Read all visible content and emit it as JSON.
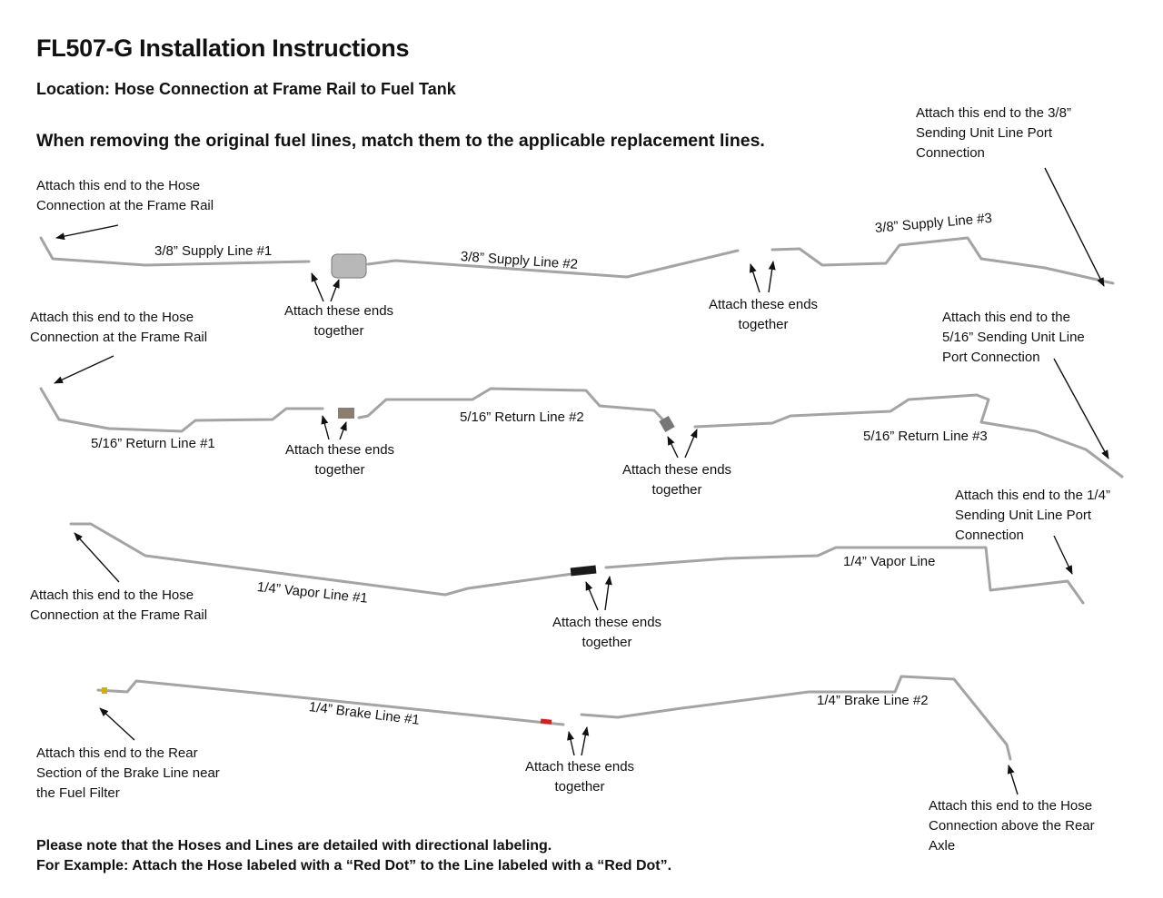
{
  "title": "FL507-G Installation Instructions",
  "location": "Location: Hose Connection at Frame Rail to Fuel Tank",
  "instruction": "When removing the original fuel lines, match them to the applicable replacement lines.",
  "supply": {
    "start_note": "Attach this end to the Hose\nConnection at the Frame Rail",
    "end_note": "Attach this end to the 3/8”\nSending Unit Line Port\nConnection",
    "line1": "3/8” Supply Line #1",
    "line2": "3/8” Supply Line #2",
    "line3": "3/8” Supply Line #3",
    "join1": "Attach these ends\ntogether",
    "join2": "Attach these ends\ntogether"
  },
  "return": {
    "start_note": "Attach this end to the Hose\nConnection at the Frame Rail",
    "end_note": "Attach this end to the\n5/16” Sending Unit Line\nPort Connection",
    "line1": "5/16” Return Line #1",
    "line2": "5/16” Return Line #2",
    "line3": "5/16” Return Line #3",
    "join1": "Attach these ends\ntogether",
    "join2": "Attach these ends\ntogether"
  },
  "vapor": {
    "start_note": "Attach this end to the Hose\nConnection at the Frame Rail",
    "end_note": "Attach this end to the 1/4”\nSending Unit Line Port\nConnection",
    "line1": "1/4” Vapor Line #1",
    "line2": "1/4” Vapor Line",
    "join1": "Attach these ends\ntogether"
  },
  "brake": {
    "start_note": "Attach this end to the Rear\nSection of the Brake Line near\nthe Fuel Filter",
    "end_note": "Attach this end to the Hose\nConnection above the Rear\nAxle",
    "line1": "1/4” Brake Line #1",
    "line2": "1/4” Brake Line #2",
    "join1": "Attach these ends\ntogether"
  },
  "footer": {
    "line1": "Please note that the Hoses and Lines are detailed with directional labeling.",
    "line2": "For Example: Attach the Hose labeled with a “Red Dot” to the Line labeled with a “Red Dot”."
  },
  "colors": {
    "tube": "#a4a4a4",
    "red_dot": "#d62020",
    "vapor_fitting": "#1a1a1a"
  }
}
